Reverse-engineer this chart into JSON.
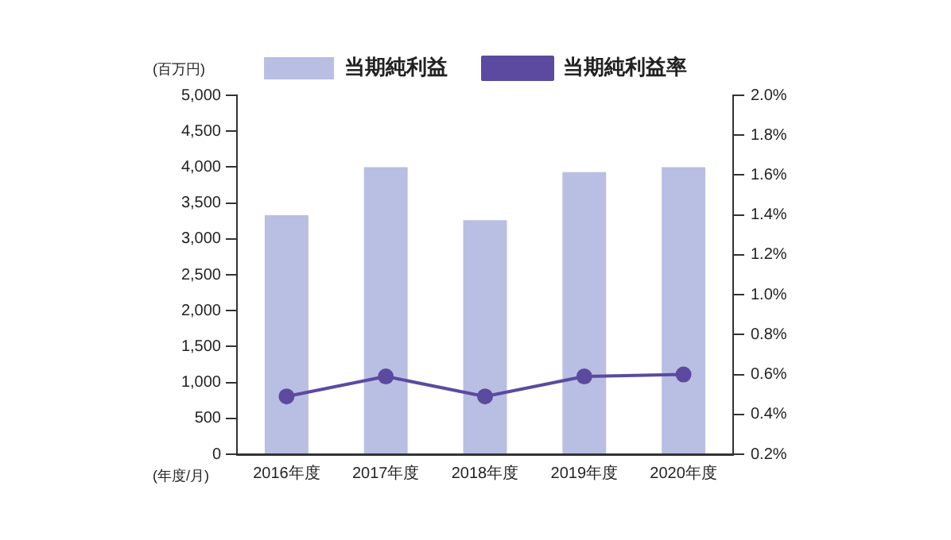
{
  "chart_data": {
    "type": "bar",
    "xlabel": "(年度/月)",
    "ylabel": "(百万円)",
    "categories": [
      "2016年度",
      "2017年度",
      "2018年度",
      "2019年度",
      "2020年度"
    ],
    "series": [
      {
        "name": "当期純利益",
        "color": "#b9bee3",
        "values": [
          3330,
          4000,
          3260,
          3930,
          4000
        ]
      },
      {
        "name": "当期純利益率",
        "type": "line",
        "axis": "y2",
        "color": "#5b4a9f",
        "values": [
          0.49,
          0.59,
          0.49,
          0.59,
          0.6
        ]
      }
    ],
    "ylim": [
      0,
      5000
    ],
    "yticks": [
      0,
      500,
      {
        "value": 1000,
        "label": "1,000"
      },
      {
        "value": 1500,
        "label": "1,500"
      },
      {
        "value": 2000,
        "label": "2,000"
      },
      {
        "value": 2500,
        "label": "2,500"
      },
      {
        "value": 3000,
        "label": "3,000"
      },
      {
        "value": 3500,
        "label": "3,500"
      },
      {
        "value": 4000,
        "label": "4,000"
      },
      {
        "value": 4500,
        "label": "4,500"
      },
      {
        "value": 5000,
        "label": "5,000"
      }
    ],
    "y2lim": [
      0.2,
      2.0
    ],
    "y2ticks": [
      {
        "value": 0.2,
        "label": "0.2%"
      },
      {
        "value": 0.4,
        "label": "0.4%"
      },
      {
        "value": 0.6,
        "label": "0.6%"
      },
      {
        "value": 0.8,
        "label": "0.8%"
      },
      {
        "value": 1.0,
        "label": "1.0%"
      },
      {
        "value": 1.2,
        "label": "1.2%"
      },
      {
        "value": 1.4,
        "label": "1.4%"
      },
      {
        "value": 1.6,
        "label": "1.6%"
      },
      {
        "value": 1.8,
        "label": "1.8%"
      },
      {
        "value": 2.0,
        "label": "2.0%"
      }
    ],
    "legend": "top",
    "marker": "circle"
  }
}
